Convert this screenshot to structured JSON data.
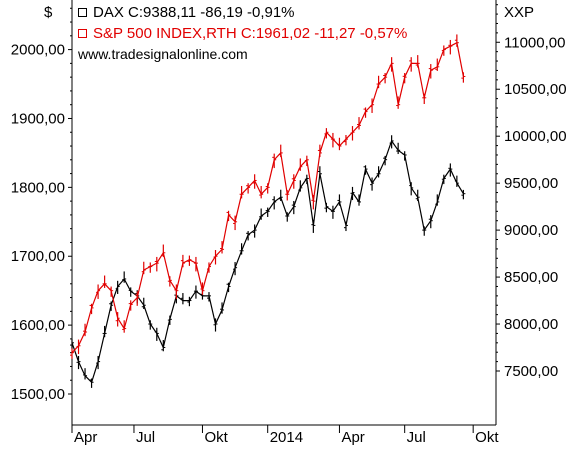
{
  "header": {
    "left_currency": "$",
    "right_currency": "XXP",
    "source": "www.tradesignalonline.com"
  },
  "legend": [
    {
      "text": "DAX C:9388,11 -86,19 -0,91%",
      "color": "#000000"
    },
    {
      "text": "S&P 500 INDEX,RTH C:1961,02 -11,27 -0,57%",
      "color": "#e10000"
    }
  ],
  "chart_data": {
    "type": "line",
    "title": "",
    "x_ticks": [
      "Apr",
      "Jul",
      "Okt",
      "2014",
      "Apr",
      "Jul",
      "Okt"
    ],
    "left_axis": {
      "ticks": [
        1500,
        1600,
        1700,
        1800,
        1900,
        2000
      ],
      "tick_labels": [
        "1500,00",
        "1600,00",
        "1700,00",
        "1800,00",
        "1900,00",
        "2000,00"
      ],
      "range": [
        1455,
        2072
      ]
    },
    "right_axis": {
      "ticks": [
        7500,
        8000,
        8500,
        9000,
        9500,
        10000,
        10500,
        11000
      ],
      "tick_labels": [
        "7500,00",
        "8000,00",
        "8500,00",
        "9000,00",
        "9500,00",
        "10000,00",
        "10500,00",
        "11000,00"
      ],
      "range": [
        6925,
        11450
      ]
    },
    "series": [
      {
        "name": "DAX",
        "axis": "right",
        "color": "#000000",
        "points": [
          [
            0,
            7800
          ],
          [
            1,
            7600
          ],
          [
            2,
            7450
          ],
          [
            3,
            7380
          ],
          [
            4,
            7600
          ],
          [
            5,
            7900
          ],
          [
            6,
            8200
          ],
          [
            7,
            8400
          ],
          [
            8,
            8480
          ],
          [
            9,
            8350
          ],
          [
            10,
            8300
          ],
          [
            11,
            8200
          ],
          [
            12,
            8000
          ],
          [
            13,
            7900
          ],
          [
            14,
            7750
          ],
          [
            15,
            8050
          ],
          [
            16,
            8300
          ],
          [
            17,
            8250
          ],
          [
            18,
            8250
          ],
          [
            19,
            8350
          ],
          [
            20,
            8300
          ],
          [
            21,
            8300
          ],
          [
            22,
            8000
          ],
          [
            23,
            8150
          ],
          [
            24,
            8400
          ],
          [
            25,
            8600
          ],
          [
            26,
            8780
          ],
          [
            27,
            8950
          ],
          [
            28,
            9000
          ],
          [
            29,
            9150
          ],
          [
            30,
            9200
          ],
          [
            31,
            9300
          ],
          [
            32,
            9350
          ],
          [
            33,
            9150
          ],
          [
            34,
            9250
          ],
          [
            35,
            9450
          ],
          [
            36,
            9550
          ],
          [
            37,
            9050
          ],
          [
            38,
            9600
          ],
          [
            39,
            9250
          ],
          [
            40,
            9200
          ],
          [
            41,
            9300
          ],
          [
            42,
            9050
          ],
          [
            43,
            9400
          ],
          [
            44,
            9300
          ],
          [
            45,
            9650
          ],
          [
            46,
            9500
          ],
          [
            47,
            9600
          ],
          [
            48,
            9750
          ],
          [
            49,
            9950
          ],
          [
            50,
            9850
          ],
          [
            51,
            9800
          ],
          [
            52,
            9450
          ],
          [
            53,
            9350
          ],
          [
            54,
            9000
          ],
          [
            55,
            9100
          ],
          [
            56,
            9300
          ],
          [
            57,
            9550
          ],
          [
            58,
            9650
          ],
          [
            59,
            9500
          ],
          [
            60,
            9388
          ]
        ]
      },
      {
        "name": "S&P 500 INDEX,RTH",
        "axis": "left",
        "color": "#e10000",
        "points": [
          [
            0,
            1560
          ],
          [
            1,
            1570
          ],
          [
            2,
            1590
          ],
          [
            3,
            1625
          ],
          [
            4,
            1650
          ],
          [
            5,
            1660
          ],
          [
            6,
            1650
          ],
          [
            7,
            1610
          ],
          [
            8,
            1595
          ],
          [
            9,
            1630
          ],
          [
            10,
            1640
          ],
          [
            11,
            1680
          ],
          [
            12,
            1685
          ],
          [
            13,
            1690
          ],
          [
            14,
            1705
          ],
          [
            15,
            1665
          ],
          [
            16,
            1650
          ],
          [
            17,
            1690
          ],
          [
            18,
            1695
          ],
          [
            19,
            1690
          ],
          [
            20,
            1650
          ],
          [
            21,
            1685
          ],
          [
            22,
            1700
          ],
          [
            23,
            1710
          ],
          [
            24,
            1760
          ],
          [
            25,
            1750
          ],
          [
            26,
            1790
          ],
          [
            27,
            1800
          ],
          [
            28,
            1810
          ],
          [
            29,
            1790
          ],
          [
            30,
            1800
          ],
          [
            31,
            1840
          ],
          [
            32,
            1850
          ],
          [
            33,
            1790
          ],
          [
            34,
            1810
          ],
          [
            35,
            1830
          ],
          [
            36,
            1840
          ],
          [
            37,
            1780
          ],
          [
            38,
            1850
          ],
          [
            39,
            1880
          ],
          [
            40,
            1870
          ],
          [
            41,
            1860
          ],
          [
            42,
            1870
          ],
          [
            43,
            1880
          ],
          [
            44,
            1890
          ],
          [
            45,
            1910
          ],
          [
            46,
            1920
          ],
          [
            47,
            1950
          ],
          [
            48,
            1960
          ],
          [
            49,
            1980
          ],
          [
            50,
            1920
          ],
          [
            51,
            1960
          ],
          [
            52,
            1980
          ],
          [
            53,
            1980
          ],
          [
            54,
            1930
          ],
          [
            55,
            1970
          ],
          [
            56,
            1975
          ],
          [
            57,
            2000
          ],
          [
            58,
            2005
          ],
          [
            59,
            2010
          ],
          [
            60,
            1961
          ]
        ]
      }
    ],
    "grid": false
  }
}
